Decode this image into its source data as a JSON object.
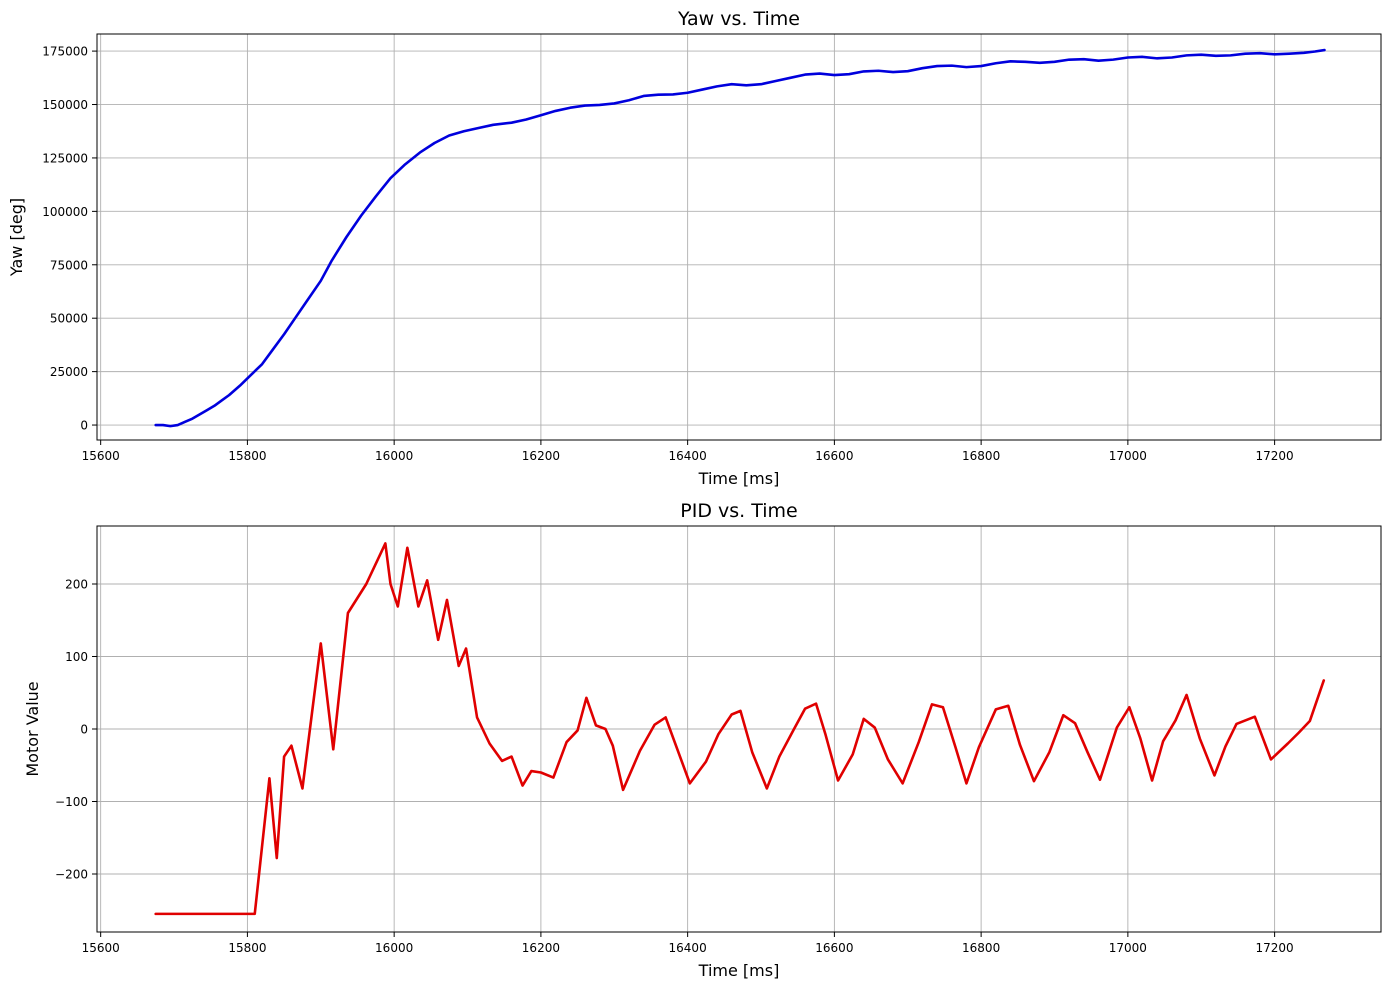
{
  "chart_data": [
    {
      "type": "line",
      "title": "Yaw vs. Time",
      "xlabel": "Time [ms]",
      "ylabel": "Yaw [deg]",
      "xlim": [
        15595,
        17345
      ],
      "ylim": [
        -7000,
        183000
      ],
      "xticks": [
        15600,
        15800,
        16000,
        16200,
        16400,
        16600,
        16800,
        17000,
        17200
      ],
      "yticks": [
        0,
        25000,
        50000,
        75000,
        100000,
        125000,
        150000,
        175000
      ],
      "xtick_labels": [
        "15600",
        "15800",
        "16000",
        "16200",
        "16400",
        "16600",
        "16800",
        "17000",
        "17200"
      ],
      "ytick_labels": [
        "0",
        "25000",
        "50000",
        "75000",
        "100000",
        "125000",
        "150000",
        "175000"
      ],
      "grid": true,
      "color": "#0000dd",
      "series": [
        {
          "x": [
            15675,
            15685,
            15695,
            15705,
            15715,
            15725,
            15735,
            15745,
            15755,
            15765,
            15775,
            15790,
            15805,
            15820,
            15835,
            15850,
            15865,
            15880,
            15900,
            15915,
            15935,
            15955,
            15975,
            15995,
            16015,
            16035,
            16055,
            16075,
            16095,
            16115,
            16135,
            16160,
            16180,
            16200,
            16220,
            16240,
            16260,
            16280,
            16300,
            16320,
            16340,
            16360,
            16380,
            16400,
            16420,
            16440,
            16460,
            16480,
            16500,
            16520,
            16540,
            16560,
            16580,
            16600,
            16620,
            16640,
            16660,
            16680,
            16700,
            16720,
            16740,
            16760,
            16780,
            16800,
            16820,
            16840,
            16860,
            16880,
            16900,
            16920,
            16940,
            16960,
            16980,
            17000,
            17020,
            17040,
            17060,
            17080,
            17100,
            17120,
            17140,
            17160,
            17180,
            17200,
            17220,
            17240,
            17255,
            17268
          ],
          "values": [
            0,
            0,
            -500,
            0,
            1500,
            3000,
            5000,
            7000,
            9000,
            11500,
            14000,
            18500,
            23500,
            28500,
            35500,
            42500,
            50000,
            57500,
            67500,
            77000,
            88000,
            98000,
            107000,
            115500,
            122000,
            127500,
            132000,
            135500,
            137500,
            139000,
            140500,
            141500,
            143000,
            145000,
            147000,
            148500,
            149500,
            149800,
            150500,
            152000,
            154000,
            154600,
            154700,
            155500,
            157000,
            158500,
            159500,
            159000,
            159500,
            161000,
            162500,
            164000,
            164500,
            163800,
            164200,
            165500,
            165800,
            165200,
            165600,
            167000,
            168000,
            168200,
            167500,
            168000,
            169300,
            170200,
            170000,
            169500,
            170000,
            171000,
            171200,
            170500,
            171000,
            172000,
            172300,
            171600,
            172000,
            173000,
            173300,
            172800,
            173000,
            173800,
            174000,
            173500,
            173800,
            174200,
            174800,
            175500
          ]
        }
      ]
    },
    {
      "type": "line",
      "title": "PID vs. Time",
      "xlabel": "Time [ms]",
      "ylabel": "Motor Value",
      "xlim": [
        15595,
        17345
      ],
      "ylim": [
        -280,
        280
      ],
      "xticks": [
        15600,
        15800,
        16000,
        16200,
        16400,
        16600,
        16800,
        17000,
        17200
      ],
      "yticks": [
        -200,
        -100,
        0,
        100,
        200
      ],
      "xtick_labels": [
        "15600",
        "15800",
        "16000",
        "16200",
        "16400",
        "16600",
        "16800",
        "17000",
        "17200"
      ],
      "ytick_labels": [
        "−200",
        "−100",
        "0",
        "100",
        "200"
      ],
      "grid": true,
      "color": "#e00000",
      "series": [
        {
          "x": [
            15675,
            15810,
            15830,
            15840,
            15850,
            15860,
            15875,
            15900,
            15917,
            15937,
            15962,
            15988,
            15995,
            16005,
            16018,
            16033,
            16045,
            16060,
            16072,
            16088,
            16098,
            16113,
            16130,
            16147,
            16160,
            16175,
            16187,
            16200,
            16217,
            16235,
            16250,
            16262,
            16275,
            16288,
            16298,
            16312,
            16335,
            16355,
            16370,
            16403,
            16425,
            16442,
            16460,
            16472,
            16488,
            16508,
            16525,
            16545,
            16560,
            16575,
            16588,
            16605,
            16625,
            16640,
            16655,
            16673,
            16693,
            16715,
            16733,
            16748,
            16765,
            16780,
            16797,
            16820,
            16837,
            16853,
            16872,
            16893,
            16912,
            16928,
            16945,
            16962,
            16985,
            17002,
            17017,
            17033,
            17048,
            17065,
            17080,
            17098,
            17118,
            17133,
            17148,
            17173,
            17195,
            17218,
            17233,
            17248,
            17267
          ],
          "values": [
            -255,
            -255,
            -68,
            -178,
            -38,
            -23,
            -82,
            118,
            -28,
            160,
            200,
            256,
            200,
            169,
            250,
            169,
            205,
            123,
            178,
            87,
            111,
            16,
            -20,
            -44,
            -38,
            -78,
            -58,
            -60,
            -67,
            -18,
            -2,
            43,
            5,
            0,
            -23,
            -84,
            -30,
            6,
            16,
            -75,
            -45,
            -7,
            20,
            25,
            -32,
            -82,
            -38,
            0,
            28,
            35,
            -8,
            -71,
            -35,
            14,
            2,
            -42,
            -75,
            -18,
            34,
            30,
            -25,
            -75,
            -25,
            27,
            32,
            -22,
            -72,
            -32,
            19,
            8,
            -32,
            -70,
            2,
            30,
            -13,
            -71,
            -17,
            12,
            47,
            -13,
            -64,
            -24,
            7,
            17,
            -42,
            -20,
            -5,
            11,
            67
          ]
        }
      ]
    }
  ]
}
